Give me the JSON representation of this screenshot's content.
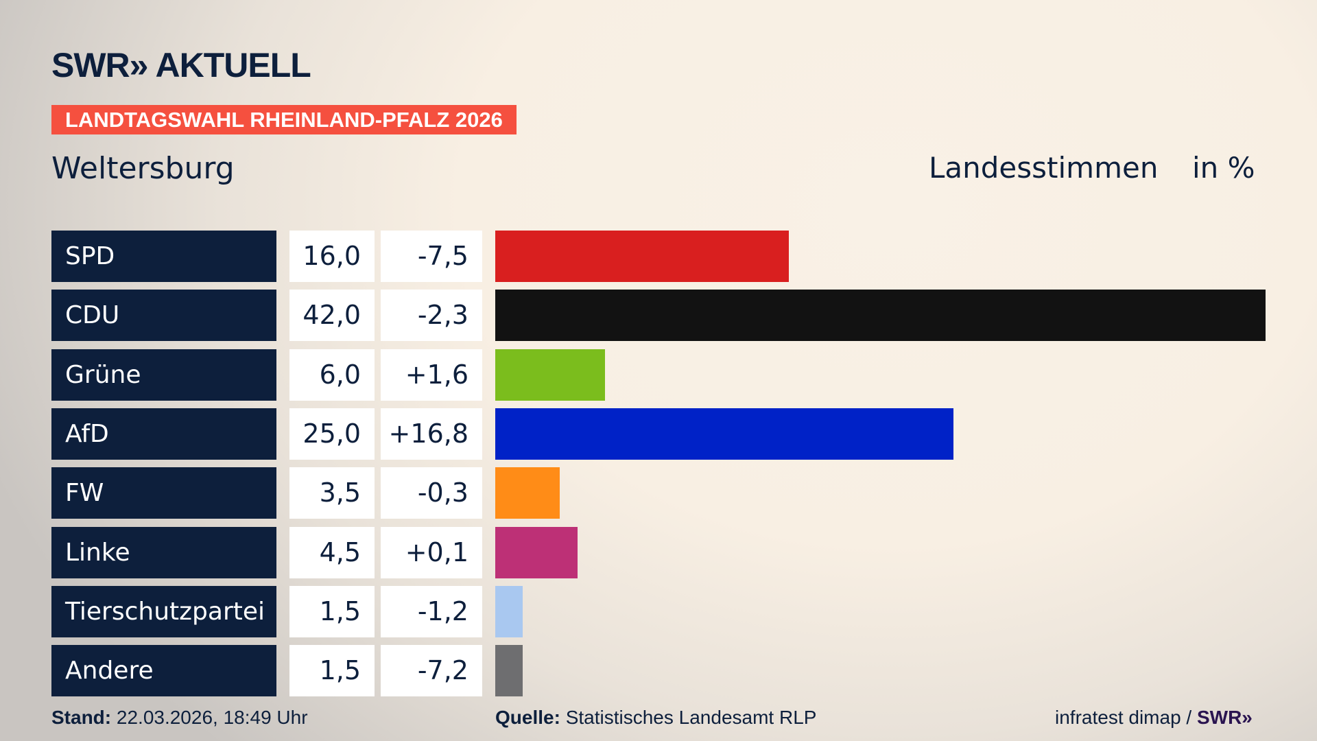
{
  "logo": "SWR» AKTUELL",
  "banner": "LANDTAGSWAHL RHEINLAND-PFALZ 2026",
  "region": "Weltersburg",
  "header_type": "Landesstimmen",
  "header_unit": "in %",
  "footer": {
    "stand_label": "Stand:",
    "stand_value": "22.03.2026, 18:49 Uhr",
    "quelle_label": "Quelle:",
    "quelle_value": "Statistisches Landesamt RLP",
    "credit": "infratest dimap /",
    "credit_logo": "SWR»"
  },
  "chart_data": {
    "type": "bar",
    "orientation": "horizontal",
    "categories": [
      "SPD",
      "CDU",
      "Grüne",
      "AfD",
      "FW",
      "Linke",
      "Tierschutzpartei",
      "Andere"
    ],
    "values": [
      16.0,
      42.0,
      6.0,
      25.0,
      3.5,
      4.5,
      1.5,
      1.5
    ],
    "value_labels": [
      "16,0",
      "42,0",
      "6,0",
      "25,0",
      "3,5",
      "4,5",
      "1,5",
      "1,5"
    ],
    "changes": [
      "-7,5",
      "-2,3",
      "+1,6",
      "+16,8",
      "-0,3",
      "+0,1",
      "-1,2",
      "-7,2"
    ],
    "colors": [
      "#d91f1f",
      "#121212",
      "#7bbd1d",
      "#0022c7",
      "#ff8c17",
      "#bd3076",
      "#a9c8f0",
      "#6e6e70"
    ],
    "unit": "in %",
    "xlim": [
      0,
      42
    ]
  }
}
